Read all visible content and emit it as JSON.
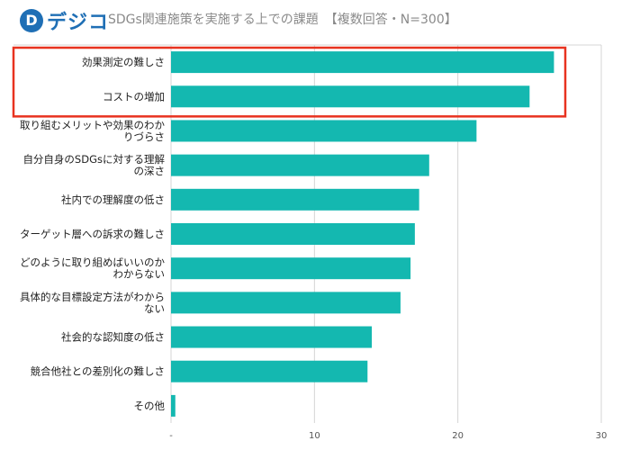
{
  "logo": {
    "mark": "D",
    "text": "デジコ"
  },
  "chart_data": {
    "type": "bar",
    "orientation": "horizontal",
    "title": "SDGs関連施策を実施する上での課題　【複数回答・N=300】",
    "categories": [
      [
        "効果測定の難しさ"
      ],
      [
        "コストの増加"
      ],
      [
        "取り組むメリットや効果のわか",
        "りづらさ"
      ],
      [
        "自分自身のSDGsに対する理解",
        "の深さ"
      ],
      [
        "社内での理解度の低さ"
      ],
      [
        "ターゲット層への訴求の難しさ"
      ],
      [
        "どのように取り組めばいいのか",
        "わからない"
      ],
      [
        "具体的な目標設定方法がわから",
        "ない"
      ],
      [
        "社会的な認知度の低さ"
      ],
      [
        "競合他社との差別化の難しさ"
      ],
      [
        "その他"
      ]
    ],
    "values": [
      26.7,
      25.0,
      21.3,
      18.0,
      17.3,
      17.0,
      16.7,
      16.0,
      14.0,
      13.7,
      0.3
    ],
    "xlim": [
      0,
      30
    ],
    "tick_labels": [
      "-",
      "10",
      "20",
      "30"
    ],
    "grid": true,
    "bar_color": "#14b8b0",
    "highlight_color": "#e8321f",
    "highlight_count": 2
  }
}
